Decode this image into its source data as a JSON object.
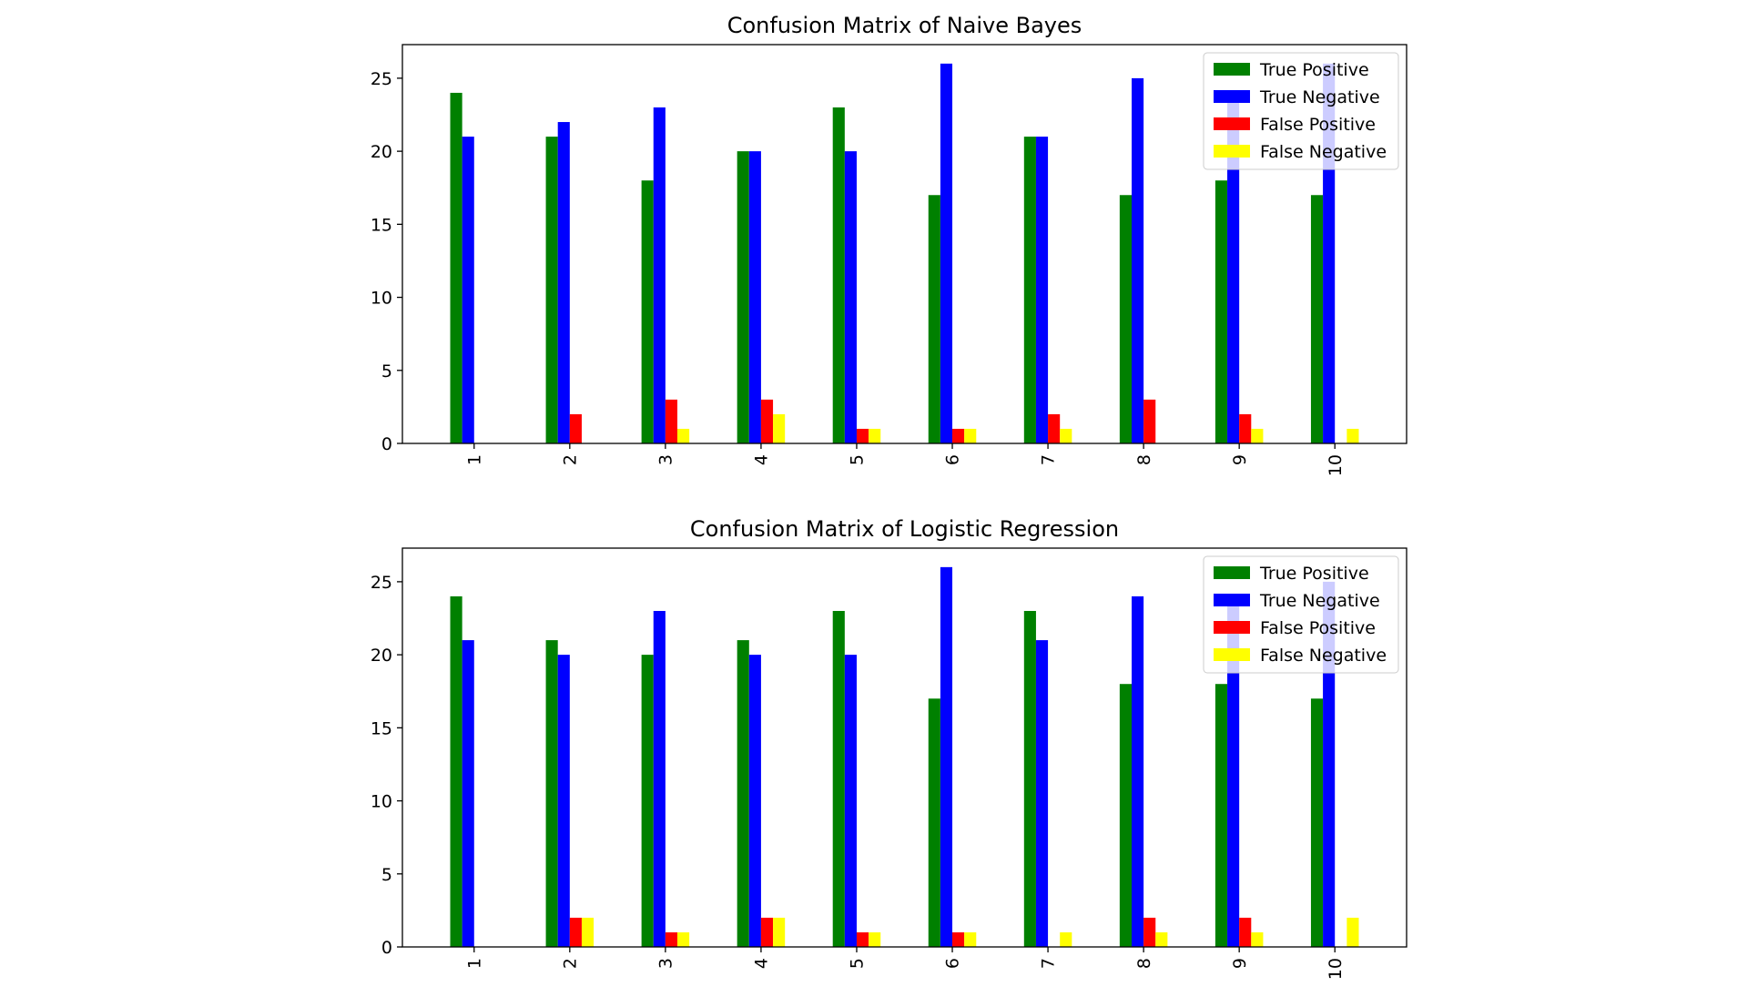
{
  "chart_data": [
    {
      "type": "bar",
      "title": "Confusion Matrix of Naive Bayes",
      "categories": [
        "1",
        "2",
        "3",
        "4",
        "5",
        "6",
        "7",
        "8",
        "9",
        "10"
      ],
      "series": [
        {
          "name": "True Positive",
          "color": "#008000",
          "values": [
            24,
            21,
            18,
            20,
            23,
            17,
            21,
            17,
            18,
            17
          ]
        },
        {
          "name": "True Negative",
          "color": "#0000ff",
          "values": [
            21,
            22,
            23,
            20,
            20,
            26,
            21,
            25,
            24,
            26
          ]
        },
        {
          "name": "False Positive",
          "color": "#ff0000",
          "values": [
            0,
            2,
            3,
            3,
            1,
            1,
            2,
            3,
            2,
            0
          ]
        },
        {
          "name": "False Negative",
          "color": "#ffff00",
          "values": [
            0,
            0,
            1,
            2,
            1,
            1,
            1,
            0,
            1,
            1
          ]
        }
      ],
      "xlabel": "",
      "ylabel": "",
      "ylim": [
        0,
        27.3
      ],
      "yticks": [
        0,
        5,
        10,
        15,
        20,
        25
      ],
      "grid": false,
      "legend_position": "top-right",
      "xtick_rotation": "vertical"
    },
    {
      "type": "bar",
      "title": "Confusion Matrix of Logistic Regression",
      "categories": [
        "1",
        "2",
        "3",
        "4",
        "5",
        "6",
        "7",
        "8",
        "9",
        "10"
      ],
      "series": [
        {
          "name": "True Positive",
          "color": "#008000",
          "values": [
            24,
            21,
            20,
            21,
            23,
            17,
            23,
            18,
            18,
            17
          ]
        },
        {
          "name": "True Negative",
          "color": "#0000ff",
          "values": [
            21,
            20,
            23,
            20,
            20,
            26,
            21,
            24,
            24,
            25
          ]
        },
        {
          "name": "False Positive",
          "color": "#ff0000",
          "values": [
            0,
            2,
            1,
            2,
            1,
            1,
            0,
            2,
            2,
            0
          ]
        },
        {
          "name": "False Negative",
          "color": "#ffff00",
          "values": [
            0,
            2,
            1,
            2,
            1,
            1,
            1,
            1,
            1,
            2
          ]
        }
      ],
      "xlabel": "",
      "ylabel": "",
      "ylim": [
        0,
        27.3
      ],
      "yticks": [
        0,
        5,
        10,
        15,
        20,
        25
      ],
      "grid": false,
      "legend_position": "top-right",
      "xtick_rotation": "vertical"
    }
  ]
}
